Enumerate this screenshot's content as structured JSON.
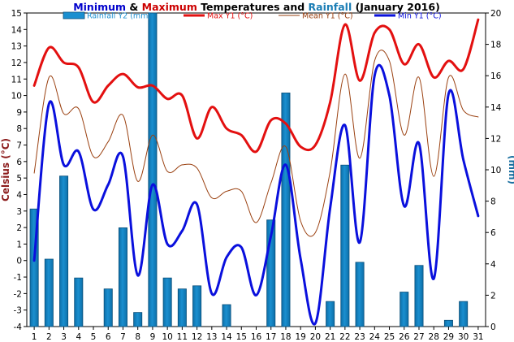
{
  "chart_data": {
    "type": "bar+line",
    "title_parts": [
      {
        "text": "Minimum",
        "color": "#0000cc"
      },
      {
        "text": " & ",
        "color": "#000000"
      },
      {
        "text": "Maximum",
        "color": "#cc0000"
      },
      {
        "text": " Temperatures and ",
        "color": "#000000"
      },
      {
        "text": "Rainfall",
        "color": "#1a7db5"
      },
      {
        "text": " (January 2016)",
        "color": "#000000"
      }
    ],
    "ylabel_left": "Celsius (°C)",
    "ylabel_right": "(mm)",
    "ylim_left": [
      -4,
      15
    ],
    "ylim_right": [
      0,
      20
    ],
    "y_left_ticks": [
      "-4",
      "-3",
      "-2",
      "-1",
      "0",
      "1",
      "2",
      "3",
      "4",
      "5",
      "6",
      "7",
      "8",
      "9",
      "10",
      "11",
      "12",
      "13",
      "14",
      "15"
    ],
    "y_right_ticks": [
      "0",
      "2",
      "4",
      "6",
      "8",
      "10",
      "12",
      "14",
      "16",
      "18",
      "20"
    ],
    "x": [
      "1",
      "2",
      "3",
      "4",
      "5",
      "6",
      "7",
      "8",
      "9",
      "10",
      "11",
      "12",
      "13",
      "14",
      "15",
      "16",
      "17",
      "18",
      "19",
      "20",
      "21",
      "22",
      "23",
      "24",
      "25",
      "26",
      "27",
      "28",
      "29",
      "30",
      "31"
    ],
    "grid": false,
    "legend_placement": "top",
    "series": [
      {
        "name": "Rainfall Y2 (mm)",
        "kind": "bar",
        "axis": "right",
        "color": "#1a8fd0",
        "values": [
          7.5,
          4.3,
          9.6,
          3.1,
          0,
          2.4,
          6.3,
          0.9,
          20,
          3.1,
          2.4,
          2.6,
          0,
          1.4,
          0,
          0,
          6.8,
          14.9,
          0,
          0,
          1.6,
          10.3,
          4.1,
          0,
          0,
          2.2,
          3.9,
          0,
          0.4,
          1.6,
          0
        ]
      },
      {
        "name": "Max Y1 (°C)",
        "kind": "line",
        "axis": "left",
        "color": "#e31010",
        "width": 3,
        "values": [
          10.6,
          12.9,
          12.0,
          11.7,
          9.6,
          10.6,
          11.3,
          10.5,
          10.6,
          9.8,
          10.0,
          7.4,
          9.3,
          8.0,
          7.6,
          6.6,
          8.5,
          8.3,
          6.9,
          7.0,
          9.6,
          14.3,
          10.9,
          13.8,
          14.0,
          11.9,
          13.1,
          11.1,
          12.1,
          11.6,
          14.6
        ]
      },
      {
        "name": "Mean Y1 (°C)",
        "kind": "line",
        "axis": "left",
        "color": "#9a4010",
        "width": 1,
        "values": [
          5.3,
          11.1,
          8.9,
          9.2,
          6.3,
          7.2,
          8.8,
          4.8,
          7.6,
          5.4,
          5.8,
          5.6,
          3.8,
          4.2,
          4.2,
          2.3,
          4.7,
          6.9,
          2.4,
          1.7,
          5.4,
          11.3,
          6.2,
          12.1,
          12.1,
          7.6,
          11.1,
          5.1,
          11.1,
          9.1,
          8.7
        ]
      },
      {
        "name": "Min Y1 (°C)",
        "kind": "line",
        "axis": "left",
        "color": "#0a10dd",
        "width": 3,
        "values": [
          0.0,
          9.5,
          5.8,
          6.6,
          3.1,
          4.6,
          6.3,
          -0.9,
          4.6,
          1.0,
          1.8,
          3.4,
          -2.0,
          0.2,
          0.8,
          -2.1,
          1.5,
          5.8,
          0.1,
          -3.8,
          3.2,
          8.2,
          1.1,
          11.2,
          10.0,
          3.3,
          7.1,
          -1.1,
          10.1,
          6.1,
          2.7
        ]
      }
    ]
  }
}
